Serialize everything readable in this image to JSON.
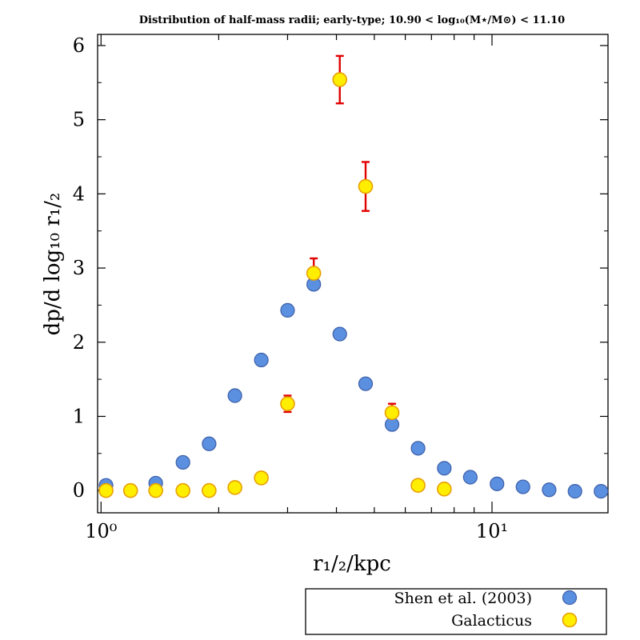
{
  "chart_data": {
    "type": "scatter",
    "title": "Distribution of half-mass radii; early-type; 10.90 < log₁₀(M⋆/M⊙) < 11.10",
    "xlabel": "r₁/₂/kpc",
    "ylabel": "dp/d log₁₀ r₁/₂",
    "xscale": "log",
    "xlim": [
      0.98,
      19.8
    ],
    "ylim": [
      -0.3,
      6.15
    ],
    "x_ticks": [
      {
        "value": 1,
        "label": "10⁰"
      },
      {
        "value": 10,
        "label": "10¹"
      }
    ],
    "y_ticks": [
      {
        "value": 0,
        "label": "0"
      },
      {
        "value": 1,
        "label": "1"
      },
      {
        "value": 2,
        "label": "2"
      },
      {
        "value": 3,
        "label": "3"
      },
      {
        "value": 4,
        "label": "4"
      },
      {
        "value": 5,
        "label": "5"
      },
      {
        "value": 6,
        "label": "6"
      }
    ],
    "legend_position": "bottom-right, below plot",
    "series": [
      {
        "name": "Shen et al. (2003)",
        "color": "#5b8fe0",
        "stroke": "#3d5fa8",
        "points": [
          {
            "x": 1.03,
            "y": 0.07
          },
          {
            "x": 1.19,
            "y": 0.0
          },
          {
            "x": 1.38,
            "y": 0.1
          },
          {
            "x": 1.62,
            "y": 0.38
          },
          {
            "x": 1.89,
            "y": 0.63
          },
          {
            "x": 2.2,
            "y": 1.28
          },
          {
            "x": 2.57,
            "y": 1.76
          },
          {
            "x": 3.0,
            "y": 2.43
          },
          {
            "x": 3.5,
            "y": 2.78
          },
          {
            "x": 4.08,
            "y": 2.11
          },
          {
            "x": 4.75,
            "y": 1.44
          },
          {
            "x": 5.55,
            "y": 0.89
          },
          {
            "x": 6.47,
            "y": 0.57
          },
          {
            "x": 7.55,
            "y": 0.3
          },
          {
            "x": 8.8,
            "y": 0.18
          },
          {
            "x": 10.3,
            "y": 0.09
          },
          {
            "x": 12.0,
            "y": 0.05
          },
          {
            "x": 14.0,
            "y": 0.01
          },
          {
            "x": 16.3,
            "y": -0.01
          },
          {
            "x": 19.0,
            "y": -0.01
          }
        ]
      },
      {
        "name": "Galacticus",
        "color": "#ffee00",
        "stroke": "#e8a000",
        "error_color": "#e00000",
        "points": [
          {
            "x": 1.03,
            "y": 0.0,
            "err": 0
          },
          {
            "x": 1.19,
            "y": 0.0,
            "err": 0
          },
          {
            "x": 1.38,
            "y": 0.0,
            "err": 0
          },
          {
            "x": 1.62,
            "y": 0.0,
            "err": 0
          },
          {
            "x": 1.89,
            "y": 0.0,
            "err": 0
          },
          {
            "x": 2.2,
            "y": 0.04,
            "err": 0
          },
          {
            "x": 2.57,
            "y": 0.17,
            "err": 0
          },
          {
            "x": 3.0,
            "y": 1.17,
            "err": 0.11
          },
          {
            "x": 3.5,
            "y": 2.93,
            "err": 0.2
          },
          {
            "x": 4.08,
            "y": 5.54,
            "err": 0.32
          },
          {
            "x": 4.75,
            "y": 4.1,
            "err": 0.33
          },
          {
            "x": 5.55,
            "y": 1.05,
            "err": 0.12
          },
          {
            "x": 6.47,
            "y": 0.07,
            "err": 0
          },
          {
            "x": 7.55,
            "y": 0.02,
            "err": 0
          }
        ]
      }
    ]
  }
}
